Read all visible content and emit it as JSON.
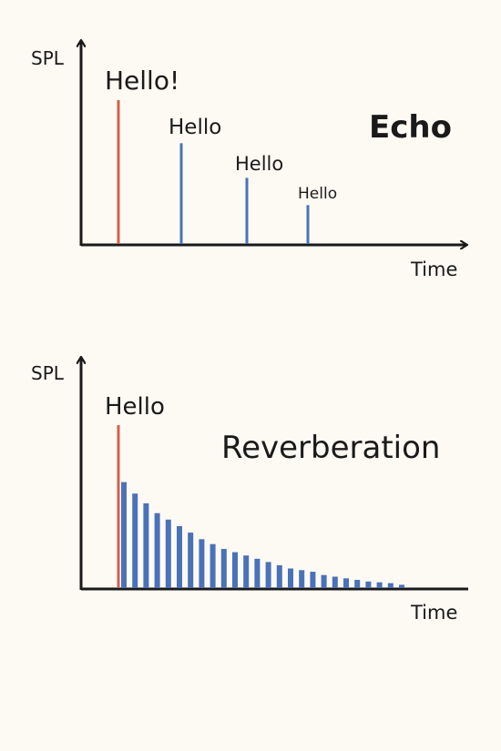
{
  "colors": {
    "background": "#fdfaf3",
    "axis": "#1a1a1a",
    "direct_sound": "#d2604d",
    "reflection": "#4a72b8"
  },
  "panels": [
    {
      "id": "echo",
      "title": "Echo",
      "y_label": "SPL",
      "x_label": "Time",
      "direct": {
        "label": "Hello!",
        "level": 1.0
      },
      "reflections": [
        {
          "label": "Hello",
          "level": 0.7
        },
        {
          "label": "Hello",
          "level": 0.46
        },
        {
          "label": "Hello",
          "level": 0.27
        }
      ]
    },
    {
      "id": "reverberation",
      "title": "Reverberation",
      "y_label": "SPL",
      "x_label": "Time",
      "direct": {
        "label": "Hello",
        "level": 1.0
      },
      "reflection_levels": [
        0.65,
        0.58,
        0.52,
        0.46,
        0.42,
        0.38,
        0.34,
        0.3,
        0.27,
        0.24,
        0.22,
        0.2,
        0.18,
        0.16,
        0.14,
        0.12,
        0.11,
        0.1,
        0.08,
        0.07,
        0.06,
        0.05,
        0.04,
        0.035,
        0.03,
        0.02
      ]
    }
  ]
}
